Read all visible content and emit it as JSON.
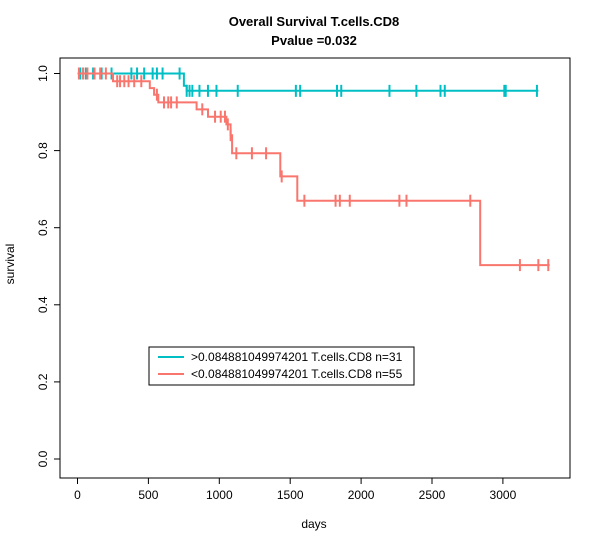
{
  "chart_data": {
    "type": "line",
    "title": "Overall Survival T.cells.CD8",
    "subtitle": "Pvalue =0.032",
    "xlabel": "days",
    "ylabel": "survival",
    "xlim": [
      0,
      3350
    ],
    "ylim": [
      0,
      1.0
    ],
    "xticks": [
      0,
      500,
      1000,
      1500,
      2000,
      2500,
      3000
    ],
    "yticks": [
      0.0,
      0.2,
      0.4,
      0.6,
      0.8,
      1.0
    ],
    "xtick_labels": [
      "0",
      "500",
      "1000",
      "1500",
      "2000",
      "2500",
      "3000"
    ],
    "ytick_labels": [
      "0.0",
      "0.2",
      "0.4",
      "0.6",
      "0.8",
      "1.0"
    ],
    "grid": false,
    "legend_position": "bottom-left",
    "series": [
      {
        "name": ">0.084881049974201 T.cells.CD8 n=31",
        "color": "#00BFC4",
        "steps": [
          [
            0,
            1.0
          ],
          [
            750,
            1.0
          ],
          [
            750,
            0.968
          ],
          [
            770,
            0.968
          ],
          [
            770,
            0.955
          ],
          [
            3250,
            0.955
          ]
        ],
        "censor_x": [
          20,
          40,
          60,
          110,
          170,
          240,
          380,
          420,
          470,
          530,
          560,
          600,
          720,
          770,
          790,
          810,
          860,
          920,
          980,
          1130,
          1540,
          1570,
          1830,
          1860,
          2200,
          2390,
          2560,
          2590,
          3010,
          3020,
          3240
        ]
      },
      {
        "name": "<0.084881049974201 T.cells.CD8 n=55",
        "color": "#F8766D",
        "steps": [
          [
            0,
            1.0
          ],
          [
            250,
            1.0
          ],
          [
            250,
            0.98
          ],
          [
            510,
            0.98
          ],
          [
            510,
            0.962
          ],
          [
            540,
            0.962
          ],
          [
            540,
            0.945
          ],
          [
            570,
            0.945
          ],
          [
            570,
            0.925
          ],
          [
            840,
            0.925
          ],
          [
            840,
            0.907
          ],
          [
            920,
            0.907
          ],
          [
            920,
            0.888
          ],
          [
            1050,
            0.888
          ],
          [
            1050,
            0.868
          ],
          [
            1080,
            0.868
          ],
          [
            1080,
            0.84
          ],
          [
            1090,
            0.84
          ],
          [
            1090,
            0.793
          ],
          [
            1430,
            0.793
          ],
          [
            1430,
            0.733
          ],
          [
            1550,
            0.733
          ],
          [
            1550,
            0.67
          ],
          [
            2840,
            0.67
          ],
          [
            2840,
            0.503
          ],
          [
            3330,
            0.503
          ]
        ],
        "censor_x": [
          10,
          40,
          70,
          120,
          160,
          200,
          280,
          300,
          330,
          360,
          400,
          450,
          560,
          610,
          640,
          660,
          700,
          880,
          970,
          1010,
          1040,
          1060,
          1080,
          1120,
          1230,
          1330,
          1440,
          1600,
          1820,
          1850,
          1920,
          2270,
          2320,
          2770,
          3120,
          3250,
          3320
        ]
      }
    ]
  }
}
